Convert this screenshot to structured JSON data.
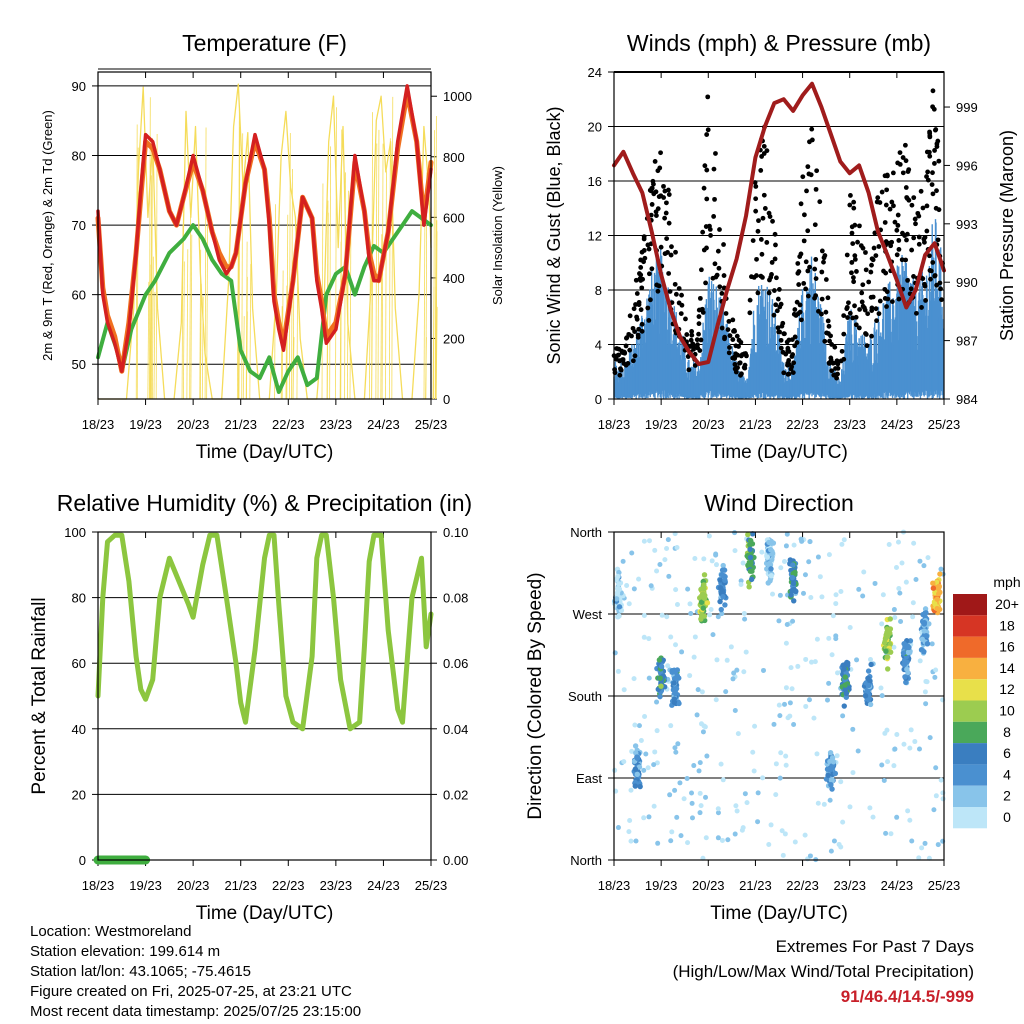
{
  "palette": {
    "temp_red": "#d42020",
    "temp_orange": "#f07020",
    "dewpoint_green": "#3fae3f",
    "solar_yellow": "#f5dc5a",
    "wind_blue": "#4a90d0",
    "gust_black": "#000000",
    "pressure_maroon": "#a01c1c",
    "rh_green": "#8cc63f",
    "precip_green": "#3fae3f",
    "extremes_red": "#c8202a"
  },
  "x_ticks": [
    "18/23",
    "19/23",
    "20/23",
    "21/23",
    "22/23",
    "23/23",
    "24/23",
    "25/23"
  ],
  "chart_data": [
    {
      "type": "line",
      "title": "Temperature (F)",
      "xlabel": "Time (Day/UTC)",
      "ylabel": "2m & 9m T (Red, Orange) & 2m Td (Green)",
      "ylabel_right": "Solar Insolation (Yellow)",
      "x_range_days": [
        0,
        7
      ],
      "ylim": [
        45,
        92
      ],
      "yticks": [
        50,
        60,
        70,
        80,
        90
      ],
      "ylim_right": [
        0,
        1080
      ],
      "yticks_right": [
        0,
        200,
        400,
        600,
        800,
        1000
      ],
      "grid": true,
      "series": [
        {
          "color_key": "temp_red",
          "x": [
            0,
            0.1,
            0.2,
            0.35,
            0.5,
            0.65,
            0.8,
            0.9,
            1.0,
            1.15,
            1.3,
            1.5,
            1.65,
            1.8,
            2.0,
            2.2,
            2.4,
            2.55,
            2.7,
            2.8,
            2.9,
            3.1,
            3.3,
            3.5,
            3.6,
            3.7,
            3.8,
            3.9,
            4.1,
            4.3,
            4.5,
            4.6,
            4.7,
            4.8,
            5.0,
            5.2,
            5.4,
            5.6,
            5.7,
            5.8,
            5.9,
            6.1,
            6.3,
            6.5,
            6.7,
            6.85,
            7.0
          ],
          "y": [
            72,
            60,
            56,
            53,
            49,
            55,
            66,
            75,
            83,
            82,
            78,
            72,
            70,
            74,
            80,
            75,
            69,
            65,
            63,
            64,
            66,
            76,
            83,
            78,
            70,
            59,
            55,
            52,
            62,
            74,
            71,
            62,
            58,
            53,
            55,
            63,
            80,
            72,
            65,
            62,
            62,
            69,
            82,
            90,
            82,
            70,
            78
          ]
        },
        {
          "color_key": "temp_orange",
          "x": [
            0,
            0.1,
            0.2,
            0.35,
            0.5,
            0.65,
            0.8,
            0.9,
            1.0,
            1.15,
            1.3,
            1.5,
            1.65,
            1.8,
            2.0,
            2.2,
            2.4,
            2.55,
            2.7,
            2.8,
            2.9,
            3.1,
            3.3,
            3.5,
            3.6,
            3.7,
            3.8,
            3.9,
            4.1,
            4.3,
            4.5,
            4.6,
            4.7,
            4.8,
            5.0,
            5.2,
            5.4,
            5.6,
            5.7,
            5.8,
            5.9,
            6.1,
            6.3,
            6.5,
            6.7,
            6.85,
            7.0
          ],
          "y": [
            71,
            61,
            57,
            54,
            49,
            56,
            66,
            74,
            82,
            81,
            78,
            72,
            70,
            74,
            79,
            75,
            69,
            66,
            64,
            64,
            66,
            76,
            82,
            78,
            71,
            60,
            56,
            53,
            62,
            74,
            71,
            63,
            59,
            54,
            56,
            63,
            79,
            72,
            66,
            63,
            62,
            69,
            81,
            89,
            82,
            71,
            79
          ]
        },
        {
          "color_key": "dewpoint_green",
          "x": [
            0,
            0.2,
            0.4,
            0.5,
            0.7,
            1.0,
            1.2,
            1.5,
            1.8,
            2.0,
            2.2,
            2.4,
            2.6,
            2.8,
            3.0,
            3.2,
            3.4,
            3.6,
            3.8,
            4.0,
            4.2,
            4.4,
            4.6,
            4.8,
            5.0,
            5.2,
            5.4,
            5.6,
            5.8,
            6.0,
            6.2,
            6.4,
            6.6,
            6.8,
            7.0
          ],
          "y": [
            51,
            56,
            52,
            49,
            55,
            60,
            62,
            66,
            68,
            70,
            68,
            65,
            63,
            62,
            52,
            49,
            48,
            51,
            46,
            49,
            51,
            47,
            48,
            60,
            63,
            64,
            60,
            64,
            67,
            66,
            68,
            70,
            72,
            71,
            70
          ]
        },
        {
          "color_key": "solar_yellow",
          "axis": "right",
          "x": [
            0.0,
            0.6,
            0.75,
            0.85,
            0.95,
            1.05,
            1.15,
            1.25,
            1.4,
            1.6,
            1.75,
            1.85,
            1.95,
            2.05,
            2.15,
            2.25,
            2.4,
            2.6,
            2.75,
            2.85,
            2.95,
            3.05,
            3.15,
            3.25,
            3.4,
            3.6,
            3.75,
            3.85,
            3.95,
            4.05,
            4.15,
            4.25,
            4.4,
            4.6,
            4.75,
            4.85,
            4.95,
            5.05,
            5.15,
            5.25,
            5.4,
            5.6,
            5.75,
            5.85,
            5.95,
            6.05,
            6.15,
            6.25,
            6.4,
            6.6,
            6.75,
            6.85,
            6.95,
            7.0
          ],
          "y": [
            0,
            0,
            300,
            750,
            1030,
            600,
            850,
            300,
            0,
            0,
            250,
            950,
            600,
            900,
            420,
            150,
            0,
            0,
            400,
            900,
            1040,
            700,
            880,
            300,
            0,
            0,
            350,
            800,
            950,
            700,
            600,
            200,
            0,
            0,
            300,
            850,
            1000,
            500,
            900,
            250,
            0,
            0,
            400,
            920,
            1000,
            750,
            850,
            300,
            0,
            0,
            350,
            900,
            700,
            500
          ]
        }
      ]
    },
    {
      "type": "line",
      "title": "Winds (mph) & Pressure (mb)",
      "xlabel": "Time (Day/UTC)",
      "ylabel": "Sonic Wind & Gust (Blue, Black)",
      "ylabel_right": "Station Pressure (Maroon)",
      "x_range_days": [
        0,
        7
      ],
      "ylim": [
        0,
        24
      ],
      "yticks": [
        0,
        4,
        8,
        12,
        16,
        20,
        24
      ],
      "ylim_right": [
        984,
        1000.8
      ],
      "yticks_right": [
        984,
        987,
        990,
        993,
        996,
        999
      ],
      "grid": true,
      "series": [
        {
          "color_key": "wind_blue",
          "x": [
            0,
            0.2,
            0.4,
            0.6,
            0.8,
            1.0,
            1.2,
            1.4,
            1.6,
            1.8,
            2.0,
            2.2,
            2.4,
            2.6,
            2.8,
            3.0,
            3.2,
            3.4,
            3.6,
            3.8,
            4.0,
            4.2,
            4.4,
            4.6,
            4.8,
            5.0,
            5.2,
            5.4,
            5.6,
            5.8,
            6.0,
            6.2,
            6.4,
            6.6,
            6.8,
            7.0
          ],
          "y": [
            2,
            2,
            3,
            5,
            7,
            8,
            6,
            4,
            2,
            2,
            7,
            6,
            4,
            2,
            1,
            6,
            7,
            5,
            2,
            2,
            6,
            8,
            5,
            2,
            1,
            5,
            4,
            3,
            5,
            6,
            7,
            8,
            6,
            7,
            10,
            7
          ]
        },
        {
          "color_key": "gust_black",
          "x": [
            0,
            0.2,
            0.4,
            0.6,
            0.8,
            1.0,
            1.2,
            1.4,
            1.6,
            1.8,
            2.0,
            2.2,
            2.4,
            2.6,
            2.8,
            3.0,
            3.2,
            3.4,
            3.6,
            3.8,
            4.0,
            4.2,
            4.4,
            4.6,
            4.8,
            5.0,
            5.2,
            5.4,
            5.6,
            5.8,
            6.0,
            6.2,
            6.4,
            6.6,
            6.8,
            7.0
          ],
          "y": [
            4,
            3,
            6,
            10,
            14,
            16,
            12,
            7,
            4,
            5,
            20,
            14,
            8,
            4,
            3,
            14,
            17,
            11,
            4,
            4,
            14,
            18,
            12,
            4,
            2,
            13,
            11,
            8,
            13,
            14,
            15,
            16,
            12,
            14,
            20,
            13
          ]
        },
        {
          "color_key": "pressure_maroon",
          "axis": "right",
          "x": [
            0,
            0.2,
            0.4,
            0.6,
            0.8,
            1.0,
            1.2,
            1.4,
            1.6,
            1.8,
            2.0,
            2.2,
            2.4,
            2.6,
            2.8,
            3.0,
            3.2,
            3.4,
            3.6,
            3.8,
            4.0,
            4.2,
            4.4,
            4.6,
            4.8,
            5.0,
            5.2,
            5.4,
            5.6,
            5.8,
            6.0,
            6.2,
            6.4,
            6.6,
            6.8,
            7.0
          ],
          "y": [
            996,
            996.7,
            995.6,
            994.6,
            992.6,
            990.4,
            988.6,
            987.2,
            986.4,
            985.8,
            985.9,
            987.8,
            989.6,
            991.2,
            993.4,
            996.4,
            998.0,
            999.2,
            999.4,
            998.8,
            999.6,
            1000.2,
            999.0,
            997.6,
            996.2,
            995.6,
            996.0,
            994.6,
            992.6,
            991.4,
            990.1,
            988.7,
            989.6,
            991.4,
            992.0,
            990.6
          ]
        }
      ]
    },
    {
      "type": "line",
      "title": "Relative Humidity (%) & Precipitation (in)",
      "xlabel": "Time (Day/UTC)",
      "ylabel": "Percent & Total Rainfall",
      "x_range_days": [
        0,
        7
      ],
      "ylim": [
        0,
        100
      ],
      "yticks": [
        0,
        20,
        40,
        60,
        80,
        100
      ],
      "ylim_right": [
        0,
        0.1
      ],
      "yticks_right": [
        "0.00",
        "0.02",
        "0.04",
        "0.06",
        "0.08",
        "0.10"
      ],
      "grid": true,
      "series": [
        {
          "color_key": "rh_green",
          "x": [
            0,
            0.1,
            0.2,
            0.35,
            0.5,
            0.65,
            0.8,
            0.9,
            1.0,
            1.15,
            1.3,
            1.5,
            1.7,
            1.9,
            2.0,
            2.2,
            2.35,
            2.5,
            2.7,
            2.9,
            3.0,
            3.1,
            3.3,
            3.5,
            3.6,
            3.7,
            3.8,
            3.95,
            4.1,
            4.3,
            4.5,
            4.6,
            4.7,
            4.8,
            4.95,
            5.1,
            5.3,
            5.5,
            5.6,
            5.7,
            5.8,
            5.95,
            6.1,
            6.3,
            6.4,
            6.6,
            6.8,
            6.9,
            7.0
          ],
          "y": [
            50,
            80,
            97,
            99,
            99,
            85,
            62,
            52,
            49,
            55,
            80,
            92,
            85,
            78,
            74,
            90,
            99,
            99,
            80,
            60,
            48,
            42,
            64,
            92,
            99,
            99,
            78,
            50,
            42,
            40,
            62,
            92,
            99,
            99,
            80,
            55,
            40,
            42,
            65,
            91,
            99,
            99,
            70,
            46,
            42,
            80,
            92,
            65,
            75
          ]
        },
        {
          "color_key": "precip_green",
          "axis": "right",
          "x": [
            0,
            0.5,
            1.0
          ],
          "y": [
            0,
            0,
            0
          ]
        }
      ]
    },
    {
      "type": "scatter",
      "title": "Wind Direction",
      "xlabel": "Time (Day/UTC)",
      "ylabel": "Direction (Colored By Speed)",
      "x_range_days": [
        0,
        7
      ],
      "yticks": [
        "North",
        "East",
        "South",
        "West",
        "North"
      ],
      "ylim_degrees": [
        0,
        360
      ],
      "grid": true,
      "colorbar": {
        "title": "mph",
        "labels": [
          "0",
          "2",
          "4",
          "6",
          "8",
          "10",
          "12",
          "14",
          "16",
          "18",
          "20+"
        ],
        "colors": [
          "#bde6f8",
          "#88c4ea",
          "#4a90d0",
          "#3a7ec0",
          "#4aa85a",
          "#9ccc50",
          "#e8e04a",
          "#f8b040",
          "#ef6a2a",
          "#d63524",
          "#a01818"
        ]
      },
      "clusters": [
        {
          "x": 0.1,
          "dir": 290,
          "speed": 1
        },
        {
          "x": 0.5,
          "dir": 100,
          "speed": 4
        },
        {
          "x": 1.0,
          "dir": 200,
          "speed": 6
        },
        {
          "x": 1.3,
          "dir": 190,
          "speed": 4
        },
        {
          "x": 1.9,
          "dir": 290,
          "speed": 10
        },
        {
          "x": 2.3,
          "dir": 300,
          "speed": 4
        },
        {
          "x": 2.9,
          "dir": 330,
          "speed": 8
        },
        {
          "x": 3.3,
          "dir": 330,
          "speed": 2
        },
        {
          "x": 3.8,
          "dir": 310,
          "speed": 6
        },
        {
          "x": 4.6,
          "dir": 100,
          "speed": 4
        },
        {
          "x": 4.9,
          "dir": 200,
          "speed": 6
        },
        {
          "x": 5.4,
          "dir": 190,
          "speed": 4
        },
        {
          "x": 5.8,
          "dir": 240,
          "speed": 10
        },
        {
          "x": 6.2,
          "dir": 220,
          "speed": 4
        },
        {
          "x": 6.6,
          "dir": 250,
          "speed": 3
        },
        {
          "x": 6.85,
          "dir": 290,
          "speed": 14
        }
      ]
    }
  ],
  "info": {
    "location": "Location: Westmoreland",
    "elevation": "Station elevation: 199.614 m",
    "latlon": "Station lat/lon: 43.1065; -75.4615",
    "created": "Figure created on Fri, 2025-07-25, at 23:21 UTC",
    "timestamp": "Most recent data timestamp: 2025/07/25 23:15:00"
  },
  "extremes": {
    "title": "Extremes For Past 7 Days",
    "subtitle": "(High/Low/Max Wind/Total Precipitation)",
    "value": "91/46.4/14.5/-999"
  }
}
